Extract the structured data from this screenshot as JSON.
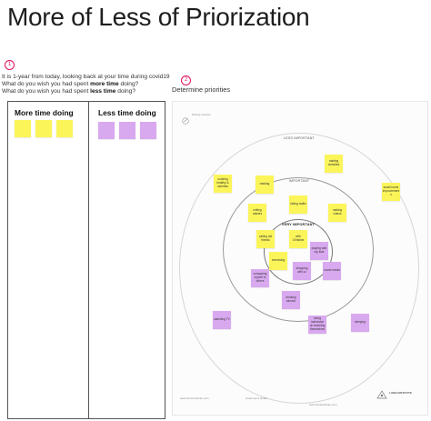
{
  "title": "More of Less of Priorization",
  "step1": {
    "badge": "1",
    "line1": "It is 1-year from today, looking back at your time during covid19",
    "line2_pre": "What do you wish you had spent ",
    "line2_bold": "more time",
    "line2_post": " doing?",
    "line3_pre": "What do you wish you had spent ",
    "line3_bold": "less time",
    "line3_post": " doing?"
  },
  "step2": {
    "badge": "2",
    "label": "Determine priorities"
  },
  "board": {
    "more_heading": "More time doing",
    "less_heading": "Less time doing",
    "more_note_count": 3,
    "less_note_count": 3
  },
  "canvas": {
    "header_text": "Priority Canvas",
    "rings": {
      "outer": "LESS IMPORTANT",
      "middle": "IMPORTANT",
      "inner": "VERY IMPORTANT"
    },
    "footer_left": "www.luma-institute.com",
    "footer_mid": "Customer's Guide",
    "footer_right": "www.lumainstitute.com",
    "brand": "LUMA INSTITUTE",
    "notes": [
      {
        "text": "making websites",
        "color": "yellow"
      },
      {
        "text": "smart home improvement s",
        "color": "yellow"
      },
      {
        "text": "cooking healthy & varieties",
        "color": "yellow"
      },
      {
        "text": "reading",
        "color": "yellow"
      },
      {
        "text": "taking walks",
        "color": "yellow"
      },
      {
        "text": "writing articles",
        "color": "yellow"
      },
      {
        "text": "making videos",
        "color": "yellow"
      },
      {
        "text": "calling old friends",
        "color": "yellow"
      },
      {
        "text": "with Christine",
        "color": "yellow"
      },
      {
        "text": "playing with my kids",
        "color": "purple"
      },
      {
        "text": "exercising",
        "color": "yellow"
      },
      {
        "text": "shopping with cc",
        "color": "purple"
      },
      {
        "text": "social media",
        "color": "purple"
      },
      {
        "text": "comparing myself to others",
        "color": "purple"
      },
      {
        "text": "drinking alcohol",
        "color": "purple"
      },
      {
        "text": "watching TV",
        "color": "purple"
      },
      {
        "text": "being indecisive on teaching themselves",
        "color": "purple"
      },
      {
        "text": "sleeping",
        "color": "purple"
      }
    ]
  },
  "colors": {
    "yellow": "#fbf55a",
    "purple": "#d9a9f0",
    "accent": "#e0105f"
  }
}
